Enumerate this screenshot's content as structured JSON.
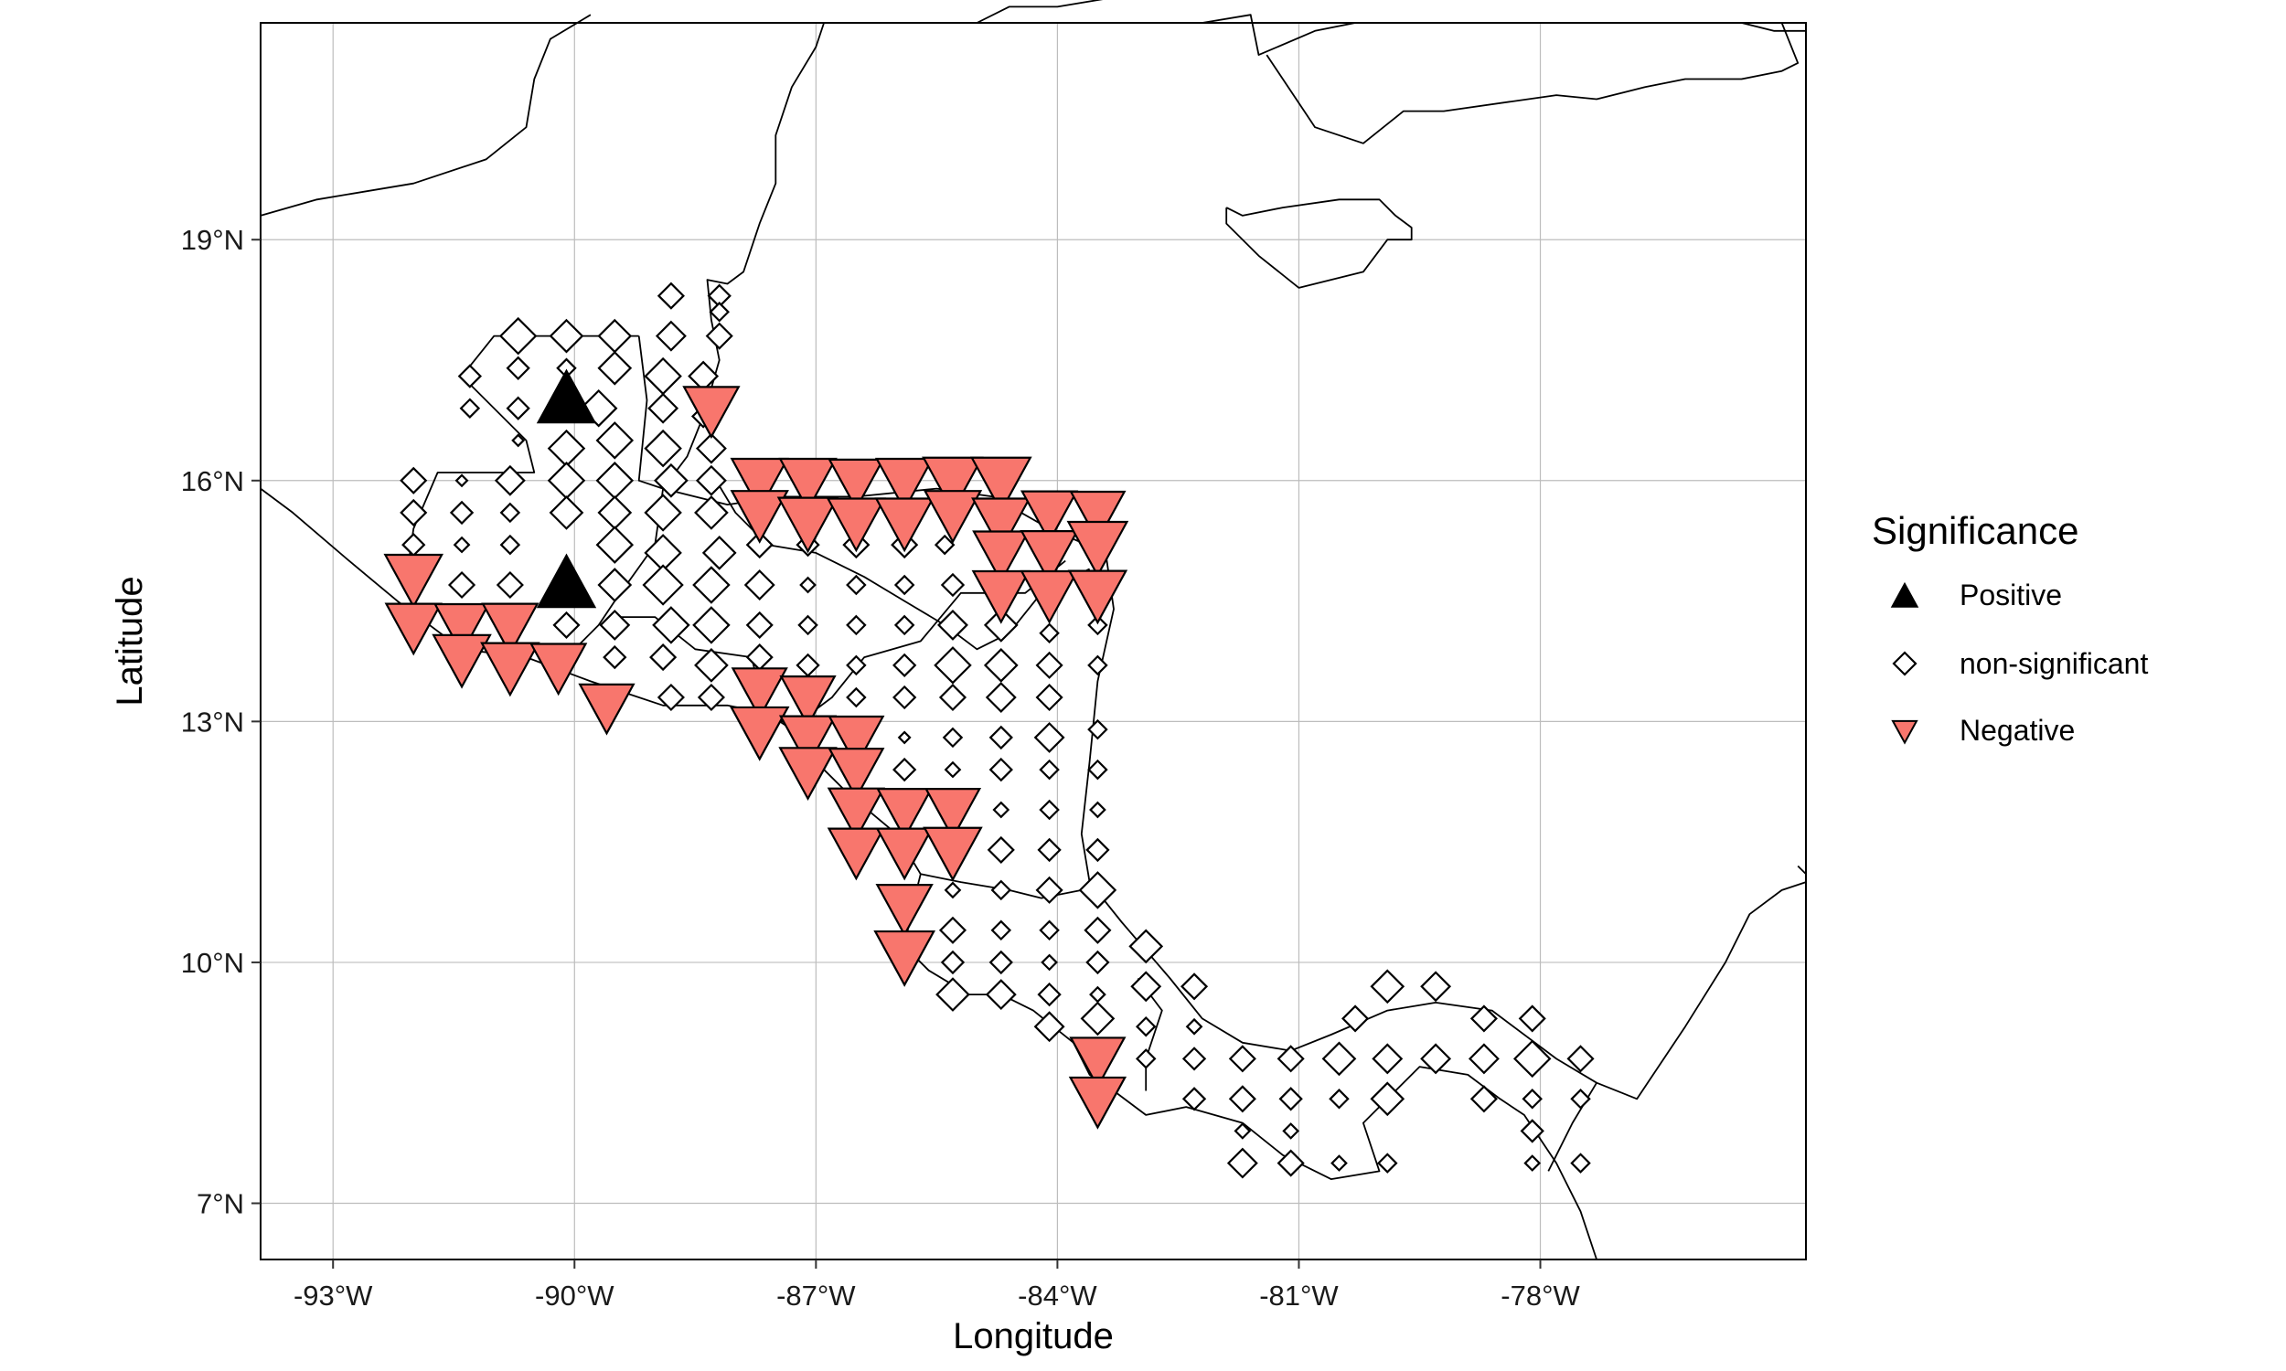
{
  "chart_data": {
    "type": "scatter",
    "kind": "map",
    "xlabel": "Longitude",
    "ylabel": "Latitude",
    "xlim": [
      -93.9,
      -74.7
    ],
    "ylim": [
      6.3,
      21.7
    ],
    "x_ticks": [
      {
        "value": -93,
        "label": "-93°W"
      },
      {
        "value": -90,
        "label": "-90°W"
      },
      {
        "value": -87,
        "label": "-87°W"
      },
      {
        "value": -84,
        "label": "-84°W"
      },
      {
        "value": -81,
        "label": "-81°W"
      },
      {
        "value": -78,
        "label": "-78°W"
      }
    ],
    "y_ticks": [
      {
        "value": 7,
        "label": "7°N"
      },
      {
        "value": 10,
        "label": "10°N"
      },
      {
        "value": 13,
        "label": "13°N"
      },
      {
        "value": 16,
        "label": "16°N"
      },
      {
        "value": 19,
        "label": "19°N"
      }
    ],
    "grid": true,
    "legend": {
      "title": "Significance",
      "position": "right",
      "entries": [
        {
          "label": "Positive",
          "shape": "triangle-up",
          "fill": "#000000"
        },
        {
          "label": "non-significant",
          "shape": "diamond",
          "fill": "#ffffff"
        },
        {
          "label": "Negative",
          "shape": "triangle-down",
          "fill": "#F8766D"
        }
      ]
    },
    "colors": {
      "positive": "#000000",
      "negative": "#F8766D",
      "outline": "#000000"
    },
    "series": [
      {
        "name": "Positive",
        "shape": "triangle-up",
        "points": [
          [
            -90.1,
            17.0,
            1.0
          ],
          [
            -90.1,
            14.7,
            1.0
          ]
        ]
      },
      {
        "name": "Negative",
        "shape": "triangle-down",
        "points": [
          [
            -88.3,
            16.9,
            0.8
          ],
          [
            -87.7,
            16.0,
            0.85
          ],
          [
            -87.1,
            16.0,
            0.85
          ],
          [
            -86.5,
            16.0,
            0.75
          ],
          [
            -85.9,
            16.0,
            0.85
          ],
          [
            -85.3,
            16.0,
            1.0
          ],
          [
            -84.7,
            16.0,
            1.0
          ],
          [
            -87.7,
            15.6,
            0.85
          ],
          [
            -87.1,
            15.5,
            1.0
          ],
          [
            -86.5,
            15.5,
            0.9
          ],
          [
            -85.9,
            15.5,
            0.9
          ],
          [
            -85.3,
            15.6,
            0.85
          ],
          [
            -84.7,
            15.5,
            0.9
          ],
          [
            -84.1,
            15.6,
            0.8
          ],
          [
            -83.5,
            15.6,
            0.75
          ],
          [
            -84.7,
            15.1,
            0.8
          ],
          [
            -84.1,
            15.1,
            0.85
          ],
          [
            -83.5,
            15.2,
            1.0
          ],
          [
            -84.7,
            14.6,
            0.85
          ],
          [
            -84.1,
            14.6,
            0.85
          ],
          [
            -83.5,
            14.6,
            0.9
          ],
          [
            -92.0,
            14.8,
            0.9
          ],
          [
            -92.0,
            14.2,
            0.8
          ],
          [
            -91.4,
            14.2,
            0.75
          ],
          [
            -90.8,
            14.2,
            0.8
          ],
          [
            -91.4,
            13.8,
            0.9
          ],
          [
            -90.8,
            13.7,
            0.9
          ],
          [
            -90.2,
            13.7,
            0.8
          ],
          [
            -89.6,
            13.2,
            0.75
          ],
          [
            -87.7,
            13.4,
            0.75
          ],
          [
            -87.1,
            13.3,
            0.75
          ],
          [
            -87.7,
            12.9,
            0.9
          ],
          [
            -87.1,
            12.8,
            0.8
          ],
          [
            -86.5,
            12.8,
            0.75
          ],
          [
            -87.1,
            12.4,
            0.85
          ],
          [
            -86.5,
            12.4,
            0.75
          ],
          [
            -86.5,
            11.9,
            0.8
          ],
          [
            -85.9,
            11.9,
            0.75
          ],
          [
            -85.3,
            11.9,
            0.75
          ],
          [
            -86.5,
            11.4,
            0.8
          ],
          [
            -85.9,
            11.4,
            0.8
          ],
          [
            -85.3,
            11.4,
            0.9
          ],
          [
            -85.9,
            10.7,
            0.8
          ],
          [
            -85.9,
            10.1,
            1.0
          ],
          [
            -83.5,
            8.8,
            0.75
          ],
          [
            -83.5,
            8.3,
            0.8
          ]
        ]
      },
      {
        "name": "non-significant",
        "shape": "diamond",
        "points": [
          [
            -88.8,
            18.3,
            0.5
          ],
          [
            -88.2,
            18.3,
            0.4
          ],
          [
            -88.2,
            18.1,
            0.3
          ],
          [
            -90.7,
            17.8,
            0.8
          ],
          [
            -90.1,
            17.8,
            0.7
          ],
          [
            -89.5,
            17.8,
            0.7
          ],
          [
            -88.8,
            17.8,
            0.6
          ],
          [
            -88.2,
            17.8,
            0.5
          ],
          [
            -91.3,
            17.3,
            0.4
          ],
          [
            -90.7,
            17.4,
            0.4
          ],
          [
            -90.1,
            17.4,
            0.3
          ],
          [
            -89.5,
            17.4,
            0.7
          ],
          [
            -88.9,
            17.3,
            0.8
          ],
          [
            -88.4,
            17.3,
            0.6
          ],
          [
            -91.3,
            16.9,
            0.3
          ],
          [
            -90.7,
            16.9,
            0.4
          ],
          [
            -89.7,
            16.9,
            0.8
          ],
          [
            -88.9,
            16.9,
            0.6
          ],
          [
            -88.4,
            16.8,
            0.4
          ],
          [
            -90.7,
            16.5,
            0.1
          ],
          [
            -90.1,
            16.4,
            0.8
          ],
          [
            -89.5,
            16.5,
            0.8
          ],
          [
            -88.9,
            16.4,
            0.8
          ],
          [
            -88.3,
            16.4,
            0.6
          ],
          [
            -92.0,
            16.0,
            0.5
          ],
          [
            -91.4,
            16.0,
            0.1
          ],
          [
            -90.8,
            16.0,
            0.6
          ],
          [
            -90.1,
            16.0,
            0.8
          ],
          [
            -89.5,
            16.0,
            0.8
          ],
          [
            -88.8,
            16.0,
            0.7
          ],
          [
            -88.3,
            16.0,
            0.6
          ],
          [
            -92.0,
            15.6,
            0.5
          ],
          [
            -91.4,
            15.6,
            0.4
          ],
          [
            -90.8,
            15.6,
            0.3
          ],
          [
            -90.1,
            15.6,
            0.7
          ],
          [
            -89.5,
            15.6,
            0.7
          ],
          [
            -88.9,
            15.6,
            0.8
          ],
          [
            -88.3,
            15.6,
            0.7
          ],
          [
            -92.0,
            15.2,
            0.4
          ],
          [
            -91.4,
            15.2,
            0.2
          ],
          [
            -90.8,
            15.2,
            0.3
          ],
          [
            -89.5,
            15.2,
            0.8
          ],
          [
            -88.9,
            15.1,
            0.8
          ],
          [
            -88.2,
            15.1,
            0.7
          ],
          [
            -87.7,
            15.2,
            0.5
          ],
          [
            -87.1,
            15.2,
            0.4
          ],
          [
            -86.5,
            15.2,
            0.5
          ],
          [
            -85.9,
            15.2,
            0.5
          ],
          [
            -85.4,
            15.2,
            0.3
          ],
          [
            -91.4,
            14.7,
            0.5
          ],
          [
            -90.8,
            14.7,
            0.5
          ],
          [
            -89.5,
            14.7,
            0.7
          ],
          [
            -88.9,
            14.7,
            0.9
          ],
          [
            -88.3,
            14.7,
            0.8
          ],
          [
            -87.7,
            14.7,
            0.6
          ],
          [
            -87.1,
            14.7,
            0.2
          ],
          [
            -86.5,
            14.7,
            0.3
          ],
          [
            -85.9,
            14.7,
            0.3
          ],
          [
            -85.3,
            14.7,
            0.4
          ],
          [
            -90.1,
            14.2,
            0.5
          ],
          [
            -89.5,
            14.2,
            0.6
          ],
          [
            -88.8,
            14.2,
            0.8
          ],
          [
            -88.3,
            14.2,
            0.8
          ],
          [
            -87.7,
            14.2,
            0.5
          ],
          [
            -87.1,
            14.2,
            0.3
          ],
          [
            -86.5,
            14.2,
            0.3
          ],
          [
            -85.9,
            14.2,
            0.3
          ],
          [
            -85.3,
            14.2,
            0.6
          ],
          [
            -84.7,
            14.2,
            0.7
          ],
          [
            -84.1,
            14.1,
            0.3
          ],
          [
            -83.5,
            14.2,
            0.3
          ],
          [
            -89.5,
            13.8,
            0.4
          ],
          [
            -88.9,
            13.8,
            0.5
          ],
          [
            -88.3,
            13.7,
            0.7
          ],
          [
            -87.7,
            13.8,
            0.5
          ],
          [
            -87.1,
            13.7,
            0.4
          ],
          [
            -86.5,
            13.7,
            0.3
          ],
          [
            -85.9,
            13.7,
            0.4
          ],
          [
            -85.3,
            13.7,
            0.8
          ],
          [
            -84.7,
            13.7,
            0.7
          ],
          [
            -84.1,
            13.7,
            0.5
          ],
          [
            -83.5,
            13.7,
            0.3
          ],
          [
            -88.8,
            13.3,
            0.5
          ],
          [
            -88.3,
            13.3,
            0.5
          ],
          [
            -86.5,
            13.3,
            0.3
          ],
          [
            -85.9,
            13.3,
            0.4
          ],
          [
            -85.3,
            13.3,
            0.5
          ],
          [
            -84.7,
            13.3,
            0.6
          ],
          [
            -84.1,
            13.3,
            0.5
          ],
          [
            -85.9,
            12.8,
            0.1
          ],
          [
            -85.3,
            12.8,
            0.3
          ],
          [
            -84.7,
            12.8,
            0.4
          ],
          [
            -84.1,
            12.8,
            0.6
          ],
          [
            -83.5,
            12.9,
            0.3
          ],
          [
            -85.9,
            12.4,
            0.4
          ],
          [
            -85.3,
            12.4,
            0.2
          ],
          [
            -84.7,
            12.4,
            0.4
          ],
          [
            -84.1,
            12.4,
            0.3
          ],
          [
            -83.5,
            12.4,
            0.3
          ],
          [
            -84.7,
            11.9,
            0.2
          ],
          [
            -84.1,
            11.9,
            0.3
          ],
          [
            -83.5,
            11.9,
            0.2
          ],
          [
            -84.7,
            11.4,
            0.5
          ],
          [
            -84.1,
            11.4,
            0.4
          ],
          [
            -83.5,
            11.4,
            0.4
          ],
          [
            -85.3,
            10.9,
            0.2
          ],
          [
            -84.7,
            10.9,
            0.3
          ],
          [
            -84.1,
            10.9,
            0.5
          ],
          [
            -83.5,
            10.9,
            0.8
          ],
          [
            -85.3,
            10.4,
            0.5
          ],
          [
            -84.7,
            10.4,
            0.3
          ],
          [
            -84.1,
            10.4,
            0.3
          ],
          [
            -83.5,
            10.4,
            0.5
          ],
          [
            -85.3,
            10.0,
            0.4
          ],
          [
            -84.7,
            10.0,
            0.4
          ],
          [
            -84.1,
            10.0,
            0.2
          ],
          [
            -83.5,
            10.0,
            0.4
          ],
          [
            -82.9,
            10.2,
            0.7
          ],
          [
            -85.3,
            9.6,
            0.7
          ],
          [
            -84.7,
            9.6,
            0.6
          ],
          [
            -84.1,
            9.6,
            0.4
          ],
          [
            -83.5,
            9.6,
            0.2
          ],
          [
            -82.9,
            9.7,
            0.6
          ],
          [
            -82.3,
            9.7,
            0.5
          ],
          [
            -84.1,
            9.2,
            0.6
          ],
          [
            -83.5,
            9.3,
            0.7
          ],
          [
            -82.9,
            9.2,
            0.3
          ],
          [
            -82.3,
            9.2,
            0.2
          ],
          [
            -80.3,
            9.3,
            0.5
          ],
          [
            -79.9,
            9.7,
            0.7
          ],
          [
            -79.3,
            9.7,
            0.6
          ],
          [
            -78.7,
            9.3,
            0.5
          ],
          [
            -78.1,
            9.3,
            0.5
          ],
          [
            -82.9,
            8.8,
            0.3
          ],
          [
            -82.3,
            8.8,
            0.4
          ],
          [
            -81.7,
            8.8,
            0.5
          ],
          [
            -81.1,
            8.8,
            0.5
          ],
          [
            -80.5,
            8.8,
            0.7
          ],
          [
            -79.9,
            8.8,
            0.6
          ],
          [
            -79.3,
            8.8,
            0.6
          ],
          [
            -78.7,
            8.8,
            0.6
          ],
          [
            -78.1,
            8.8,
            0.8
          ],
          [
            -77.5,
            8.8,
            0.5
          ],
          [
            -82.3,
            8.3,
            0.4
          ],
          [
            -81.7,
            8.3,
            0.5
          ],
          [
            -81.1,
            8.3,
            0.4
          ],
          [
            -80.5,
            8.3,
            0.3
          ],
          [
            -79.9,
            8.3,
            0.7
          ],
          [
            -78.7,
            8.3,
            0.5
          ],
          [
            -78.1,
            8.3,
            0.3
          ],
          [
            -77.5,
            8.3,
            0.3
          ],
          [
            -81.7,
            7.9,
            0.2
          ],
          [
            -81.1,
            7.9,
            0.2
          ],
          [
            -78.1,
            7.9,
            0.4
          ],
          [
            -81.7,
            7.5,
            0.6
          ],
          [
            -81.1,
            7.5,
            0.5
          ],
          [
            -80.5,
            7.5,
            0.2
          ],
          [
            -79.9,
            7.5,
            0.3
          ],
          [
            -78.1,
            7.5,
            0.2
          ],
          [
            -77.5,
            7.5,
            0.3
          ]
        ]
      }
    ]
  }
}
